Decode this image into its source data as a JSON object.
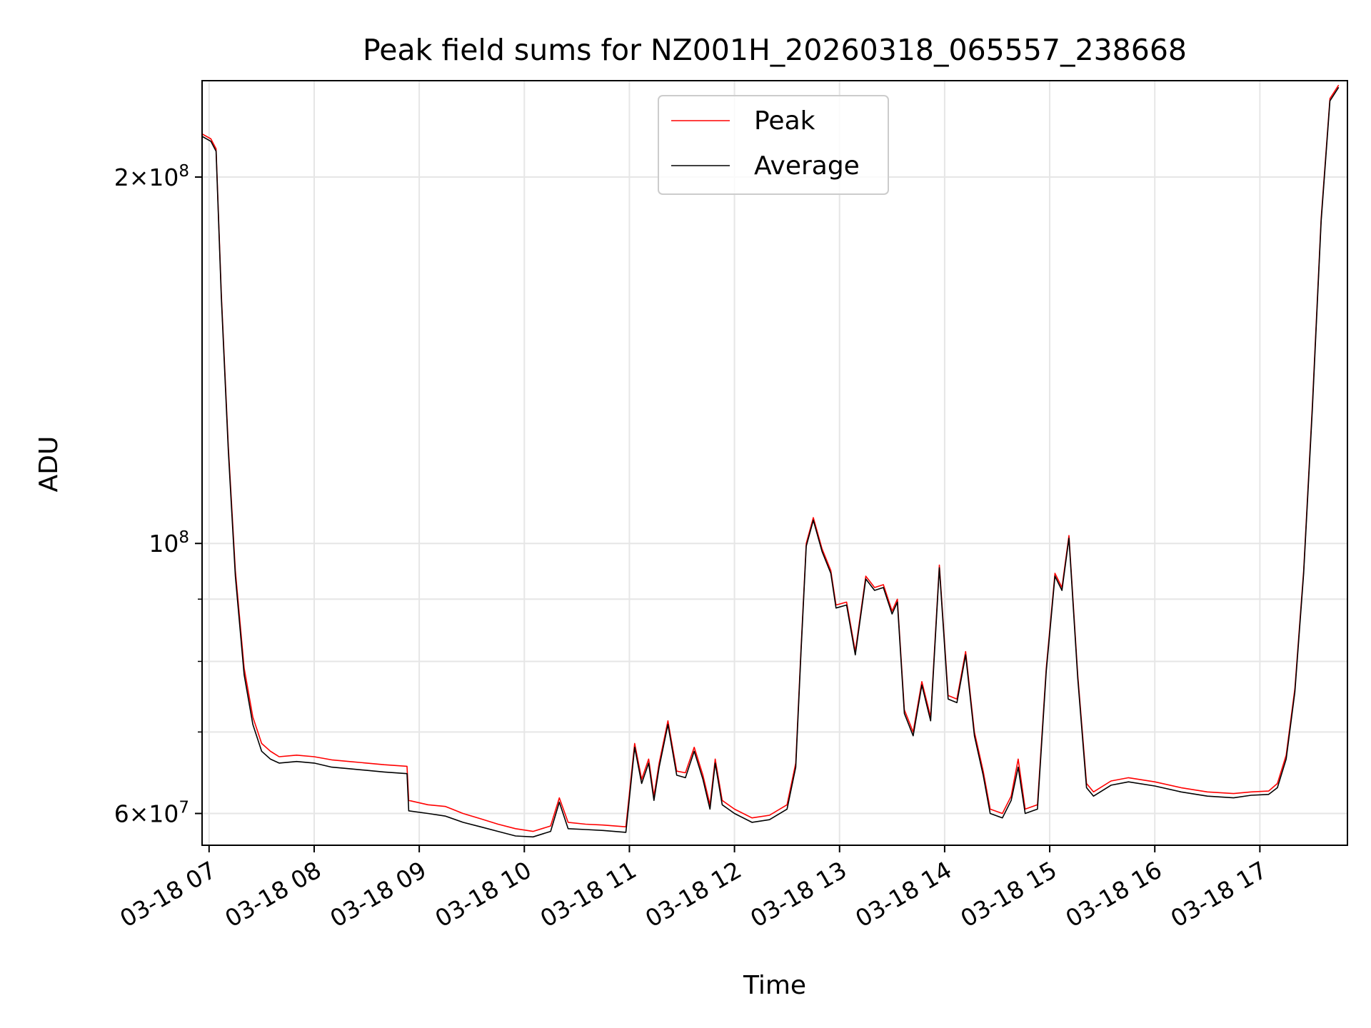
{
  "chart_data": {
    "type": "line",
    "title": "Peak field sums for NZ001H_20260318_065557_238668",
    "xlabel": "Time",
    "ylabel": "ADU",
    "yscale": "log",
    "ylim": [
      56500000,
      240000000
    ],
    "xlim": [
      "2026-03-18 06:56",
      "2026-03-18 17:50"
    ],
    "grid": true,
    "legend_position": "top-center",
    "x_ticks": [
      {
        "label": "03-18 07",
        "x": "2026-03-18 07:00"
      },
      {
        "label": "03-18 08",
        "x": "2026-03-18 08:00"
      },
      {
        "label": "03-18 09",
        "x": "2026-03-18 09:00"
      },
      {
        "label": "03-18 10",
        "x": "2026-03-18 10:00"
      },
      {
        "label": "03-18 11",
        "x": "2026-03-18 11:00"
      },
      {
        "label": "03-18 12",
        "x": "2026-03-18 12:00"
      },
      {
        "label": "03-18 13",
        "x": "2026-03-18 13:00"
      },
      {
        "label": "03-18 14",
        "x": "2026-03-18 14:00"
      },
      {
        "label": "03-18 15",
        "x": "2026-03-18 15:00"
      },
      {
        "label": "03-18 16",
        "x": "2026-03-18 16:00"
      },
      {
        "label": "03-18 17",
        "x": "2026-03-18 17:00"
      }
    ],
    "y_ticks_major": [
      {
        "value": 60000000,
        "base": "6",
        "exp": "7"
      },
      {
        "value": 100000000,
        "base": "",
        "exp": "8"
      },
      {
        "value": 200000000,
        "base": "2",
        "exp": "8"
      }
    ],
    "y_ticks_minor": [
      70000000,
      80000000,
      90000000
    ],
    "series": [
      {
        "name": "Peak",
        "color": "#ff0000",
        "points": [
          [
            "2026-03-18 06:56",
            217000000
          ],
          [
            "2026-03-18 07:01",
            215000000
          ],
          [
            "2026-03-18 07:04",
            211000000
          ],
          [
            "2026-03-18 07:07",
            160000000
          ],
          [
            "2026-03-18 07:11",
            120000000
          ],
          [
            "2026-03-18 07:15",
            95000000
          ],
          [
            "2026-03-18 07:20",
            79000000
          ],
          [
            "2026-03-18 07:25",
            72000000
          ],
          [
            "2026-03-18 07:30",
            68500000
          ],
          [
            "2026-03-18 07:35",
            67500000
          ],
          [
            "2026-03-18 07:40",
            66800000
          ],
          [
            "2026-03-18 07:50",
            67000000
          ],
          [
            "2026-03-18 08:00",
            66800000
          ],
          [
            "2026-03-18 08:10",
            66400000
          ],
          [
            "2026-03-18 08:20",
            66200000
          ],
          [
            "2026-03-18 08:30",
            66000000
          ],
          [
            "2026-03-18 08:40",
            65800000
          ],
          [
            "2026-03-18 08:53",
            65600000
          ],
          [
            "2026-03-18 08:54",
            61500000
          ],
          [
            "2026-03-18 09:05",
            61000000
          ],
          [
            "2026-03-18 09:15",
            60800000
          ],
          [
            "2026-03-18 09:25",
            60000000
          ],
          [
            "2026-03-18 09:35",
            59400000
          ],
          [
            "2026-03-18 09:45",
            58800000
          ],
          [
            "2026-03-18 09:55",
            58300000
          ],
          [
            "2026-03-18 10:05",
            58000000
          ],
          [
            "2026-03-18 10:15",
            58600000
          ],
          [
            "2026-03-18 10:20",
            61800000
          ],
          [
            "2026-03-18 10:25",
            59000000
          ],
          [
            "2026-03-18 10:35",
            58800000
          ],
          [
            "2026-03-18 10:45",
            58700000
          ],
          [
            "2026-03-18 10:58",
            58500000
          ],
          [
            "2026-03-18 11:03",
            68500000
          ],
          [
            "2026-03-18 11:07",
            64000000
          ],
          [
            "2026-03-18 11:11",
            66500000
          ],
          [
            "2026-03-18 11:14",
            62000000
          ],
          [
            "2026-03-18 11:17",
            66000000
          ],
          [
            "2026-03-18 11:22",
            71500000
          ],
          [
            "2026-03-18 11:27",
            65000000
          ],
          [
            "2026-03-18 11:32",
            64800000
          ],
          [
            "2026-03-18 11:37",
            68000000
          ],
          [
            "2026-03-18 11:42",
            64500000
          ],
          [
            "2026-03-18 11:46",
            61000000
          ],
          [
            "2026-03-18 11:49",
            66500000
          ],
          [
            "2026-03-18 11:53",
            61500000
          ],
          [
            "2026-03-18 12:00",
            60500000
          ],
          [
            "2026-03-18 12:10",
            59500000
          ],
          [
            "2026-03-18 12:20",
            59800000
          ],
          [
            "2026-03-18 12:30",
            61000000
          ],
          [
            "2026-03-18 12:35",
            66000000
          ],
          [
            "2026-03-18 12:38",
            82000000
          ],
          [
            "2026-03-18 12:41",
            100000000
          ],
          [
            "2026-03-18 12:45",
            105000000
          ],
          [
            "2026-03-18 12:50",
            99000000
          ],
          [
            "2026-03-18 12:55",
            95000000
          ],
          [
            "2026-03-18 12:58",
            89000000
          ],
          [
            "2026-03-18 13:04",
            89500000
          ],
          [
            "2026-03-18 13:09",
            81500000
          ],
          [
            "2026-03-18 13:15",
            94000000
          ],
          [
            "2026-03-18 13:20",
            92000000
          ],
          [
            "2026-03-18 13:25",
            92500000
          ],
          [
            "2026-03-18 13:30",
            88000000
          ],
          [
            "2026-03-18 13:33",
            90000000
          ],
          [
            "2026-03-18 13:37",
            73000000
          ],
          [
            "2026-03-18 13:42",
            70000000
          ],
          [
            "2026-03-18 13:47",
            77000000
          ],
          [
            "2026-03-18 13:52",
            72000000
          ],
          [
            "2026-03-18 13:57",
            96000000
          ],
          [
            "2026-03-18 14:02",
            75000000
          ],
          [
            "2026-03-18 14:07",
            74500000
          ],
          [
            "2026-03-18 14:12",
            81500000
          ],
          [
            "2026-03-18 14:17",
            70000000
          ],
          [
            "2026-03-18 14:22",
            65000000
          ],
          [
            "2026-03-18 14:26",
            60500000
          ],
          [
            "2026-03-18 14:33",
            60000000
          ],
          [
            "2026-03-18 14:38",
            62000000
          ],
          [
            "2026-03-18 14:42",
            66500000
          ],
          [
            "2026-03-18 14:46",
            60500000
          ],
          [
            "2026-03-18 14:53",
            61000000
          ],
          [
            "2026-03-18 14:58",
            79000000
          ],
          [
            "2026-03-18 15:03",
            94500000
          ],
          [
            "2026-03-18 15:07",
            92000000
          ],
          [
            "2026-03-18 15:11",
            101500000
          ],
          [
            "2026-03-18 15:16",
            78000000
          ],
          [
            "2026-03-18 15:21",
            63500000
          ],
          [
            "2026-03-18 15:25",
            62500000
          ],
          [
            "2026-03-18 15:35",
            63800000
          ],
          [
            "2026-03-18 15:45",
            64200000
          ],
          [
            "2026-03-18 16:00",
            63700000
          ],
          [
            "2026-03-18 16:15",
            63000000
          ],
          [
            "2026-03-18 16:30",
            62500000
          ],
          [
            "2026-03-18 16:45",
            62300000
          ],
          [
            "2026-03-18 16:55",
            62500000
          ],
          [
            "2026-03-18 17:05",
            62600000
          ],
          [
            "2026-03-18 17:10",
            63500000
          ],
          [
            "2026-03-18 17:15",
            67000000
          ],
          [
            "2026-03-18 17:20",
            76000000
          ],
          [
            "2026-03-18 17:25",
            95000000
          ],
          [
            "2026-03-18 17:30",
            130000000
          ],
          [
            "2026-03-18 17:35",
            185000000
          ],
          [
            "2026-03-18 17:40",
            232000000
          ],
          [
            "2026-03-18 17:45",
            238000000
          ]
        ]
      },
      {
        "name": "Average",
        "color": "#000000",
        "points": [
          [
            "2026-03-18 06:56",
            216000000
          ],
          [
            "2026-03-18 07:01",
            214000000
          ],
          [
            "2026-03-18 07:04",
            210000000
          ],
          [
            "2026-03-18 07:07",
            159000000
          ],
          [
            "2026-03-18 07:11",
            119000000
          ],
          [
            "2026-03-18 07:15",
            94000000
          ],
          [
            "2026-03-18 07:20",
            78000000
          ],
          [
            "2026-03-18 07:25",
            71000000
          ],
          [
            "2026-03-18 07:30",
            67500000
          ],
          [
            "2026-03-18 07:35",
            66500000
          ],
          [
            "2026-03-18 07:40",
            66000000
          ],
          [
            "2026-03-18 07:50",
            66200000
          ],
          [
            "2026-03-18 08:00",
            66000000
          ],
          [
            "2026-03-18 08:10",
            65500000
          ],
          [
            "2026-03-18 08:20",
            65300000
          ],
          [
            "2026-03-18 08:30",
            65100000
          ],
          [
            "2026-03-18 08:40",
            64900000
          ],
          [
            "2026-03-18 08:53",
            64700000
          ],
          [
            "2026-03-18 08:54",
            60300000
          ],
          [
            "2026-03-18 09:05",
            60000000
          ],
          [
            "2026-03-18 09:15",
            59700000
          ],
          [
            "2026-03-18 09:25",
            59000000
          ],
          [
            "2026-03-18 09:35",
            58500000
          ],
          [
            "2026-03-18 09:45",
            58000000
          ],
          [
            "2026-03-18 09:55",
            57500000
          ],
          [
            "2026-03-18 10:05",
            57400000
          ],
          [
            "2026-03-18 10:15",
            58000000
          ],
          [
            "2026-03-18 10:20",
            61300000
          ],
          [
            "2026-03-18 10:25",
            58300000
          ],
          [
            "2026-03-18 10:35",
            58200000
          ],
          [
            "2026-03-18 10:45",
            58100000
          ],
          [
            "2026-03-18 10:58",
            57900000
          ],
          [
            "2026-03-18 11:03",
            68000000
          ],
          [
            "2026-03-18 11:07",
            63500000
          ],
          [
            "2026-03-18 11:11",
            66000000
          ],
          [
            "2026-03-18 11:14",
            61500000
          ],
          [
            "2026-03-18 11:17",
            65500000
          ],
          [
            "2026-03-18 11:22",
            71000000
          ],
          [
            "2026-03-18 11:27",
            64500000
          ],
          [
            "2026-03-18 11:32",
            64200000
          ],
          [
            "2026-03-18 11:37",
            67500000
          ],
          [
            "2026-03-18 11:42",
            64000000
          ],
          [
            "2026-03-18 11:46",
            60500000
          ],
          [
            "2026-03-18 11:49",
            66000000
          ],
          [
            "2026-03-18 11:53",
            61000000
          ],
          [
            "2026-03-18 12:00",
            60000000
          ],
          [
            "2026-03-18 12:10",
            59000000
          ],
          [
            "2026-03-18 12:20",
            59300000
          ],
          [
            "2026-03-18 12:30",
            60500000
          ],
          [
            "2026-03-18 12:35",
            65500000
          ],
          [
            "2026-03-18 12:38",
            81500000
          ],
          [
            "2026-03-18 12:41",
            99500000
          ],
          [
            "2026-03-18 12:45",
            104500000
          ],
          [
            "2026-03-18 12:50",
            98500000
          ],
          [
            "2026-03-18 12:55",
            94500000
          ],
          [
            "2026-03-18 12:58",
            88500000
          ],
          [
            "2026-03-18 13:04",
            89000000
          ],
          [
            "2026-03-18 13:09",
            81000000
          ],
          [
            "2026-03-18 13:15",
            93500000
          ],
          [
            "2026-03-18 13:20",
            91500000
          ],
          [
            "2026-03-18 13:25",
            92000000
          ],
          [
            "2026-03-18 13:30",
            87500000
          ],
          [
            "2026-03-18 13:33",
            89500000
          ],
          [
            "2026-03-18 13:37",
            72500000
          ],
          [
            "2026-03-18 13:42",
            69500000
          ],
          [
            "2026-03-18 13:47",
            76500000
          ],
          [
            "2026-03-18 13:52",
            71500000
          ],
          [
            "2026-03-18 13:57",
            95500000
          ],
          [
            "2026-03-18 14:02",
            74500000
          ],
          [
            "2026-03-18 14:07",
            74000000
          ],
          [
            "2026-03-18 14:12",
            81000000
          ],
          [
            "2026-03-18 14:17",
            69500000
          ],
          [
            "2026-03-18 14:22",
            64500000
          ],
          [
            "2026-03-18 14:26",
            60000000
          ],
          [
            "2026-03-18 14:33",
            59500000
          ],
          [
            "2026-03-18 14:38",
            61500000
          ],
          [
            "2026-03-18 14:42",
            65500000
          ],
          [
            "2026-03-18 14:46",
            60000000
          ],
          [
            "2026-03-18 14:53",
            60500000
          ],
          [
            "2026-03-18 14:58",
            78500000
          ],
          [
            "2026-03-18 15:03",
            94000000
          ],
          [
            "2026-03-18 15:07",
            91500000
          ],
          [
            "2026-03-18 15:11",
            101000000
          ],
          [
            "2026-03-18 15:16",
            77500000
          ],
          [
            "2026-03-18 15:21",
            63000000
          ],
          [
            "2026-03-18 15:25",
            62000000
          ],
          [
            "2026-03-18 15:35",
            63300000
          ],
          [
            "2026-03-18 15:45",
            63700000
          ],
          [
            "2026-03-18 16:00",
            63200000
          ],
          [
            "2026-03-18 16:15",
            62500000
          ],
          [
            "2026-03-18 16:30",
            62000000
          ],
          [
            "2026-03-18 16:45",
            61800000
          ],
          [
            "2026-03-18 16:55",
            62100000
          ],
          [
            "2026-03-18 17:05",
            62200000
          ],
          [
            "2026-03-18 17:10",
            63000000
          ],
          [
            "2026-03-18 17:15",
            66500000
          ],
          [
            "2026-03-18 17:20",
            75500000
          ],
          [
            "2026-03-18 17:25",
            94500000
          ],
          [
            "2026-03-18 17:30",
            129000000
          ],
          [
            "2026-03-18 17:35",
            184000000
          ],
          [
            "2026-03-18 17:40",
            231000000
          ],
          [
            "2026-03-18 17:45",
            237000000
          ]
        ]
      }
    ]
  }
}
